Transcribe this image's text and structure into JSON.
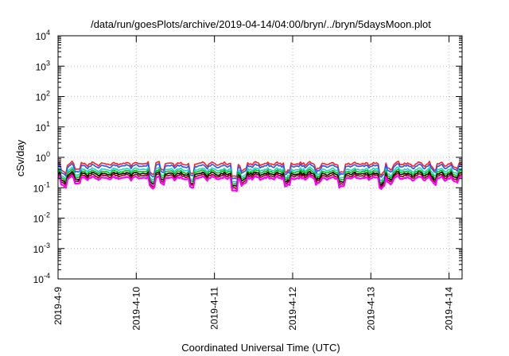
{
  "chart_data": {
    "type": "line",
    "title": "/data/run/goesPlots/archive/2019-04-14/04:00/bryn/../bryn/5daysMoon.plot",
    "xlabel": "Coordinated Universal Time (UTC)",
    "ylabel": "cSv/day",
    "yscale": "log",
    "ylim": [
      0.0001,
      10000
    ],
    "xlim": [
      "2019-04-09 00:00",
      "2019-04-14 04:00"
    ],
    "x_tick_labels": [
      "2019-4-9",
      "2019-4-10",
      "2019-4-11",
      "2019-4-12",
      "2019-4-13",
      "2019-4-14"
    ],
    "y_ticks": [
      {
        "base": "10",
        "exp": "-4"
      },
      {
        "base": "10",
        "exp": "-3"
      },
      {
        "base": "10",
        "exp": "-2"
      },
      {
        "base": "10",
        "exp": "-1"
      },
      {
        "base": "10",
        "exp": "0"
      },
      {
        "base": "10",
        "exp": "1"
      },
      {
        "base": "10",
        "exp": "2"
      },
      {
        "base": "10",
        "exp": "3"
      },
      {
        "base": "10",
        "exp": "4"
      }
    ],
    "grid": true,
    "series": [
      {
        "color": "#ff1f1f",
        "level": 0.62
      },
      {
        "color": "#2255ff",
        "level": 0.52
      },
      {
        "color": "#20d0d0",
        "level": 0.4
      },
      {
        "color": "#00c000",
        "level": 0.34
      },
      {
        "color": "#000000",
        "level": 0.29
      },
      {
        "color": "#8b0000",
        "level": 0.25
      },
      {
        "color": "#ff00ff",
        "level": 0.21
      }
    ],
    "dips": [
      {
        "x": "2019-04-09 01:30",
        "factor": 0.55
      },
      {
        "x": "2019-04-09 06:00",
        "factor": 0.7
      },
      {
        "x": "2019-04-10 05:00",
        "factor": 0.5
      },
      {
        "x": "2019-04-10 08:00",
        "factor": 0.7
      },
      {
        "x": "2019-04-10 17:00",
        "factor": 0.45
      },
      {
        "x": "2019-04-11 06:00",
        "factor": 0.35
      },
      {
        "x": "2019-04-11 09:00",
        "factor": 0.6
      },
      {
        "x": "2019-04-11 22:30",
        "factor": 0.55
      },
      {
        "x": "2019-04-12 08:00",
        "factor": 0.7
      },
      {
        "x": "2019-04-12 15:00",
        "factor": 0.55
      },
      {
        "x": "2019-04-13 03:30",
        "factor": 0.5
      },
      {
        "x": "2019-04-13 06:00",
        "factor": 0.7
      },
      {
        "x": "2019-04-13 19:00",
        "factor": 0.75
      },
      {
        "x": "2019-04-14 02:00",
        "factor": 0.75
      }
    ]
  }
}
